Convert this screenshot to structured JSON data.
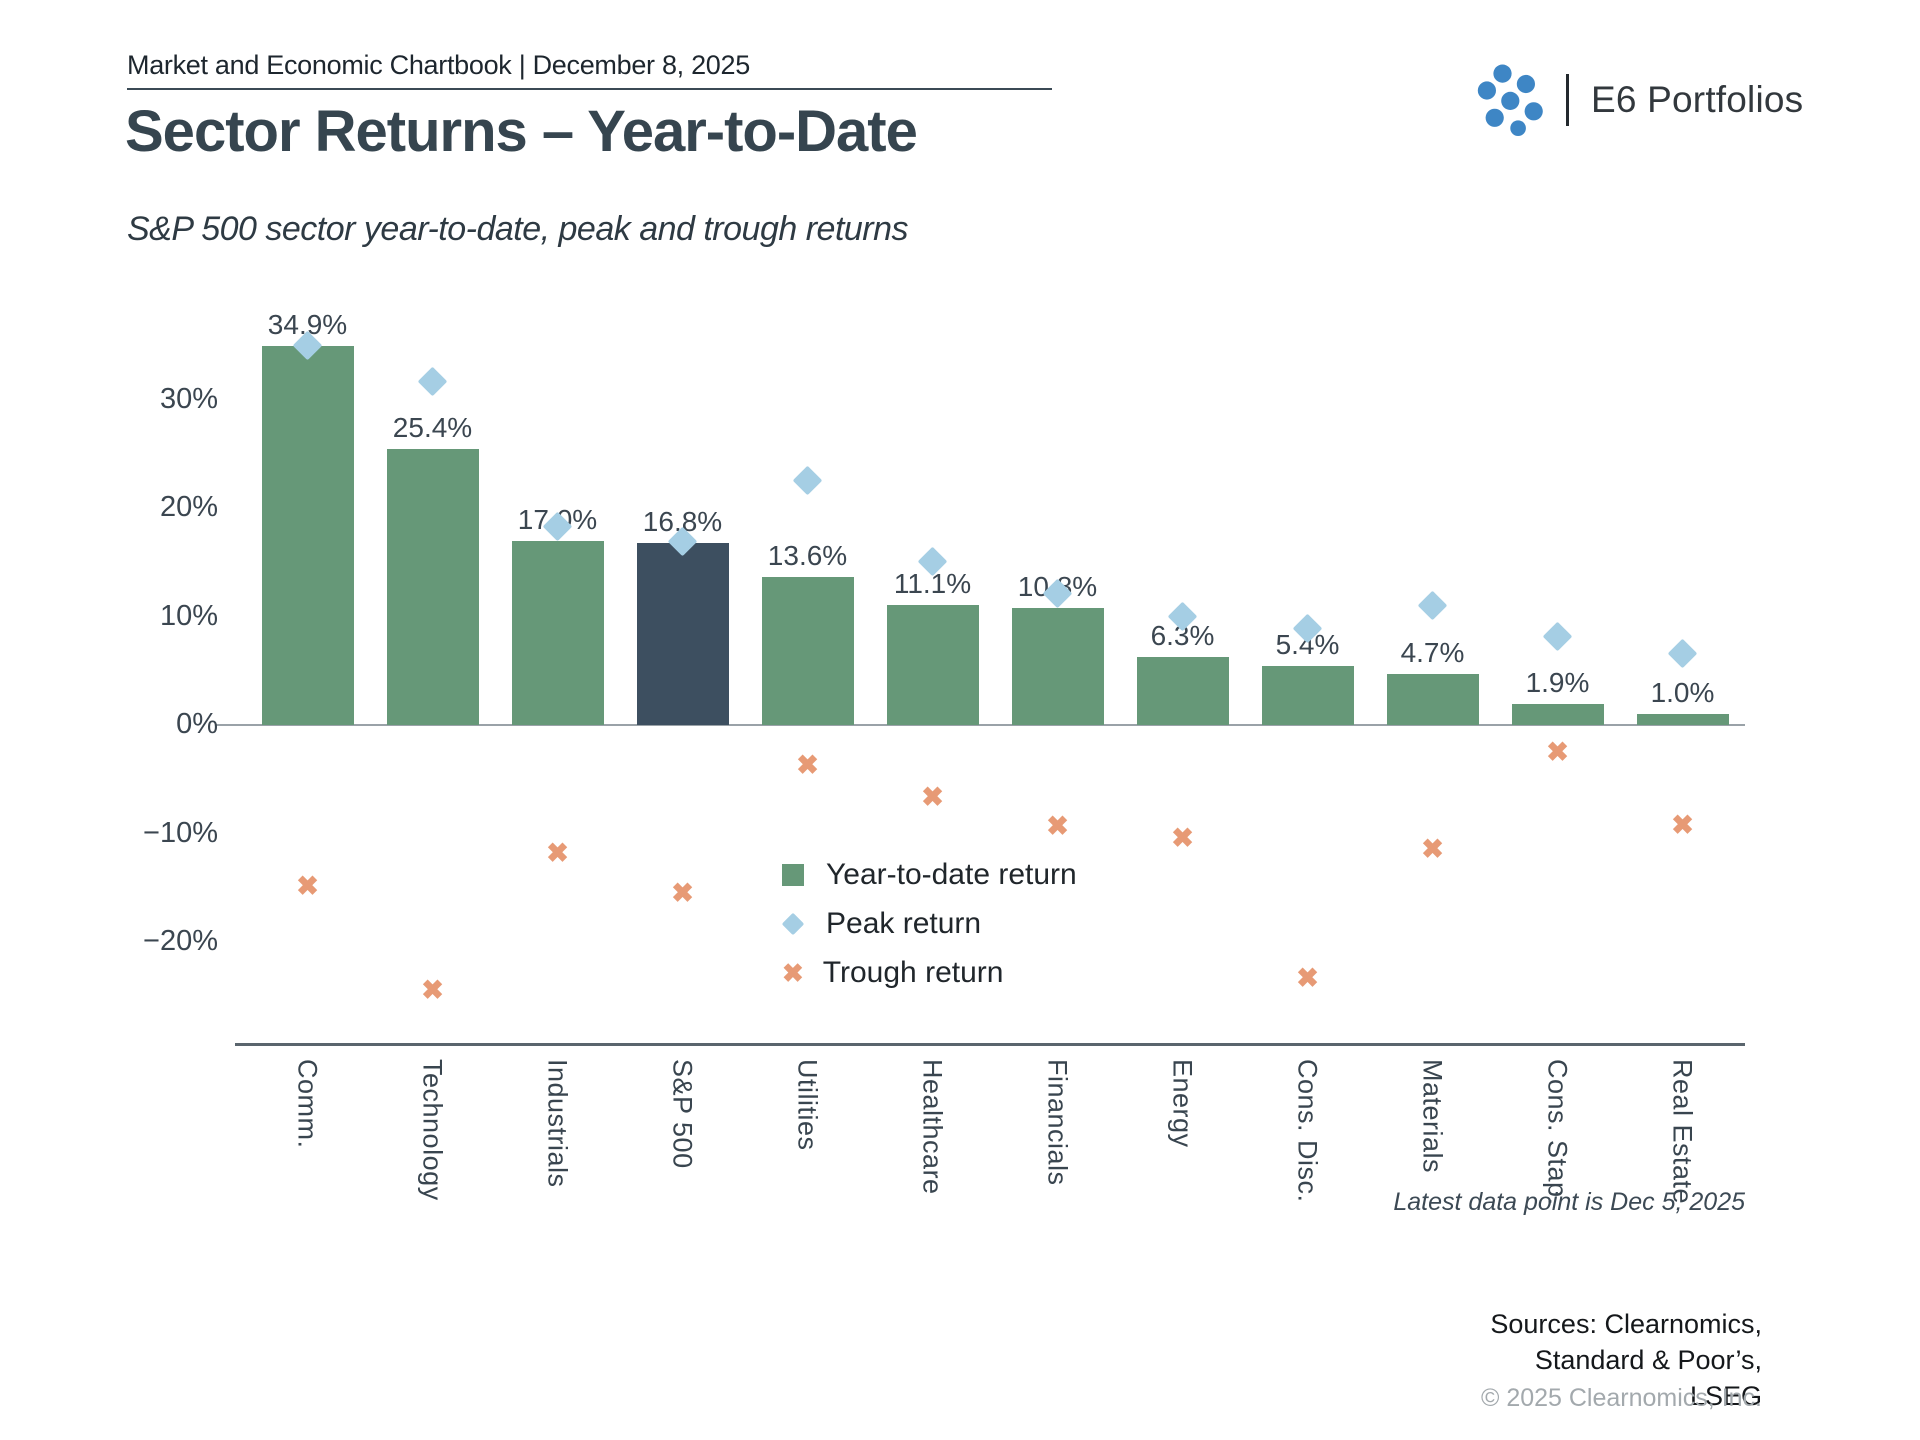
{
  "header": {
    "chartbook_title": "Market and Economic Chartbook | December 8, 2025",
    "brand": "E6 Portfolios"
  },
  "title": "Sector Returns – Year-to-Date",
  "subtitle": "S&P 500 sector year-to-date, peak and trough returns",
  "legend": [
    "Year-to-date return",
    "Peak return",
    "Trough return"
  ],
  "footnote": "Latest data point is Dec 5, 2025",
  "sources": [
    "Sources: Clearnomics,",
    "Standard & Poor’s,",
    "LSEG"
  ],
  "copyright": "© 2025 Clearnomics, Inc.",
  "colors": {
    "bar_green": "#669878",
    "bar_highlight_navy": "#3d4f60",
    "peak_diamond_blue": "#a5cee4",
    "trough_x_orange": "#e79a75",
    "logo_blue": "#3e86c5",
    "text_dark": "#36454f"
  },
  "chart_data": {
    "type": "bar",
    "categories": [
      "Comm.",
      "Technology",
      "Industrials",
      "S&P 500",
      "Utilities",
      "Healthcare",
      "Financials",
      "Energy",
      "Cons. Disc.",
      "Materials",
      "Cons. Stap.",
      "Real Estate"
    ],
    "highlight_category": "S&P 500",
    "series": [
      {
        "name": "Year-to-date return",
        "marker": "bar",
        "values": [
          34.9,
          25.4,
          17.0,
          16.8,
          13.6,
          11.1,
          10.8,
          6.3,
          5.4,
          4.7,
          1.9,
          1.0
        ]
      },
      {
        "name": "Peak return",
        "marker": "diamond",
        "values": [
          35.0,
          31.7,
          18.3,
          16.9,
          22.5,
          15.1,
          12.1,
          10.0,
          8.9,
          11.0,
          8.2,
          6.6
        ]
      },
      {
        "name": "Trough return",
        "marker": "x",
        "values": [
          -14.8,
          -24.4,
          -11.8,
          -15.5,
          -3.7,
          -6.6,
          -9.3,
          -10.4,
          -23.3,
          -11.4,
          -2.5,
          -9.2
        ]
      }
    ],
    "bar_labels": [
      "34.9%",
      "25.4%",
      "17.0%",
      "16.8%",
      "13.6%",
      "11.1%",
      "10.8%",
      "6.3%",
      "5.4%",
      "4.7%",
      "1.9%",
      "1.0%"
    ],
    "yticks": [
      {
        "v": 30,
        "label": "30%"
      },
      {
        "v": 20,
        "label": "20%"
      },
      {
        "v": 10,
        "label": "10%"
      },
      {
        "v": 0,
        "label": "0%"
      },
      {
        "v": -10,
        "label": "−10%"
      },
      {
        "v": -20,
        "label": "−20%"
      }
    ],
    "ylim": [
      -29,
      36.5
    ],
    "grid": false,
    "legend_position": "inside-center-below-zero",
    "xlabel": "",
    "ylabel": ""
  }
}
